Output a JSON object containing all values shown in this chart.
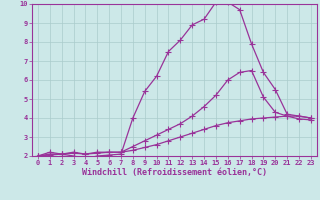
{
  "xlabel": "Windchill (Refroidissement éolien,°C)",
  "ylabel": "",
  "bg_color": "#cce8e8",
  "grid_color": "#aacccc",
  "line_color": "#993399",
  "xlim": [
    -0.5,
    23.5
  ],
  "ylim": [
    2,
    10
  ],
  "xticks": [
    0,
    1,
    2,
    3,
    4,
    5,
    6,
    7,
    8,
    9,
    10,
    11,
    12,
    13,
    14,
    15,
    16,
    17,
    18,
    19,
    20,
    21,
    22,
    23
  ],
  "yticks": [
    2,
    3,
    4,
    5,
    6,
    7,
    8,
    9,
    10
  ],
  "curve1_x": [
    0,
    1,
    2,
    3,
    4,
    5,
    6,
    7,
    8,
    9,
    10,
    11,
    12,
    13,
    14,
    15,
    16,
    17,
    18,
    19,
    20,
    21,
    22,
    23
  ],
  "curve1_y": [
    2.0,
    2.2,
    2.1,
    2.0,
    1.85,
    2.0,
    2.05,
    2.1,
    4.0,
    5.4,
    6.2,
    7.5,
    8.1,
    8.9,
    9.2,
    10.1,
    10.1,
    9.7,
    7.9,
    6.4,
    5.5,
    4.2,
    4.1,
    4.0
  ],
  "curve2_x": [
    0,
    1,
    2,
    3,
    4,
    5,
    6,
    7,
    8,
    9,
    10,
    11,
    12,
    13,
    14,
    15,
    16,
    17,
    18,
    19,
    20,
    21,
    22,
    23
  ],
  "curve2_y": [
    2.0,
    2.1,
    2.1,
    2.2,
    2.1,
    2.2,
    2.2,
    2.2,
    2.5,
    2.8,
    3.1,
    3.4,
    3.7,
    4.1,
    4.6,
    5.2,
    6.0,
    6.4,
    6.5,
    5.1,
    4.3,
    4.1,
    3.95,
    3.9
  ],
  "curve3_x": [
    0,
    1,
    2,
    3,
    4,
    5,
    6,
    7,
    8,
    9,
    10,
    11,
    12,
    13,
    14,
    15,
    16,
    17,
    18,
    19,
    20,
    21,
    22,
    23
  ],
  "curve3_y": [
    2.0,
    2.05,
    2.1,
    2.15,
    2.1,
    2.15,
    2.2,
    2.2,
    2.3,
    2.45,
    2.6,
    2.8,
    3.0,
    3.2,
    3.4,
    3.6,
    3.75,
    3.85,
    3.95,
    4.0,
    4.05,
    4.1,
    4.1,
    4.0
  ],
  "marker": "+",
  "markersize": 4,
  "linewidth": 0.9,
  "tick_color": "#993399",
  "tick_labelsize": 5.0,
  "xlabel_fontsize": 6.0,
  "axis_color": "#993399",
  "fig_bg": "#cce8e8"
}
